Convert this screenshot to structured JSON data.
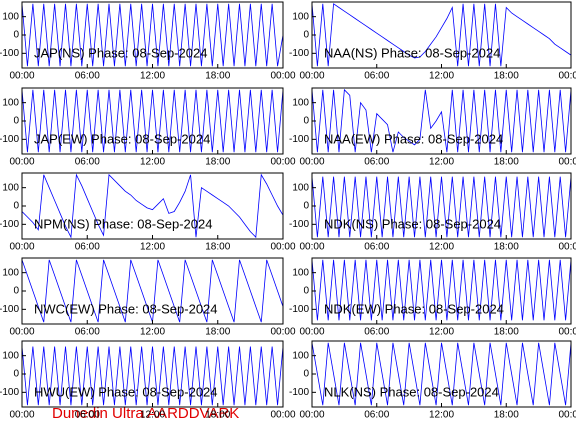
{
  "footer": "Dunedin Ultra AARDDVARK",
  "chart_data": [
    {
      "type": "line",
      "title": "JAP(NS) Phase: 08-Sep-2024",
      "color": "#0000ff",
      "x": [
        0,
        0.5,
        1,
        1.5,
        2,
        2.5,
        3,
        3.5,
        4,
        4.5,
        5,
        5.5,
        6,
        6.5,
        7,
        7.5,
        8,
        8.5,
        9,
        9.5,
        10,
        10.5,
        11,
        11.5,
        12,
        12.5,
        13,
        13.5,
        14,
        14.5,
        15,
        15.5,
        16,
        16.5,
        17,
        17.5,
        18,
        18.5,
        19,
        19.5,
        20,
        20.5,
        21,
        21.5,
        22,
        22.5,
        23,
        23.5,
        24
      ],
      "values": [
        170,
        -170,
        170,
        -170,
        170,
        -170,
        170,
        -170,
        170,
        -170,
        170,
        -170,
        170,
        -170,
        170,
        -170,
        170,
        -170,
        170,
        -170,
        170,
        -170,
        170,
        -170,
        170,
        -170,
        170,
        -170,
        170,
        -170,
        170,
        -170,
        170,
        -170,
        170,
        -170,
        170,
        -170,
        170,
        -170,
        170,
        -170,
        170,
        -170,
        170,
        -170,
        170,
        -170,
        0
      ],
      "xlim": [
        0,
        24
      ],
      "ylim": [
        -180,
        180
      ],
      "yticks": [
        -100,
        0,
        100
      ],
      "xticks": [
        {
          "value": 0,
          "label": "00:00"
        },
        {
          "value": 6,
          "label": "06:00"
        },
        {
          "value": 12,
          "label": "12:00"
        },
        {
          "value": 18,
          "label": "18:00"
        },
        {
          "value": 24,
          "label": "00:00"
        }
      ]
    },
    {
      "type": "line",
      "title": "NAA(NS) Phase: 08-Sep-2024",
      "color": "#0000ff",
      "x": [
        0,
        0.5,
        1,
        1.5,
        2,
        2.5,
        3,
        3.5,
        4,
        4.5,
        5,
        5.5,
        6,
        6.5,
        7,
        7.5,
        8,
        8.5,
        9,
        9.5,
        10,
        10.5,
        11,
        11.5,
        12,
        12.5,
        13,
        13.5,
        14,
        14.5,
        15,
        15.5,
        16,
        16.5,
        17,
        17.5,
        18,
        18.5,
        19,
        19.5,
        20,
        20.5,
        21,
        21.5,
        22,
        22.5,
        23,
        23.5,
        24
      ],
      "values": [
        170,
        -170,
        170,
        -170,
        170,
        150,
        130,
        110,
        90,
        70,
        50,
        30,
        10,
        -10,
        -30,
        -50,
        -70,
        -90,
        -110,
        -125,
        -120,
        -90,
        -50,
        -10,
        40,
        90,
        150,
        -170,
        170,
        -170,
        170,
        -170,
        170,
        -170,
        170,
        -170,
        150,
        120,
        100,
        80,
        60,
        40,
        20,
        0,
        -20,
        -50,
        -70,
        -90,
        -110
      ],
      "xlim": [
        0,
        24
      ],
      "ylim": [
        -180,
        180
      ],
      "yticks": [
        -100,
        0,
        100
      ],
      "xticks": [
        {
          "value": 0,
          "label": "00:00"
        },
        {
          "value": 6,
          "label": "06:00"
        },
        {
          "value": 12,
          "label": "12:00"
        },
        {
          "value": 18,
          "label": "18:00"
        },
        {
          "value": 24,
          "label": "00:00"
        }
      ]
    },
    {
      "type": "line",
      "title": "JAP(EW) Phase: 08-Sep-2024",
      "color": "#0000ff",
      "x": [
        0,
        0.5,
        1,
        1.5,
        2,
        2.5,
        3,
        3.5,
        4,
        4.5,
        5,
        5.5,
        6,
        6.5,
        7,
        7.5,
        8,
        8.5,
        9,
        9.5,
        10,
        10.5,
        11,
        11.5,
        12,
        12.5,
        13,
        13.5,
        14,
        14.5,
        15,
        15.5,
        16,
        16.5,
        17,
        17.5,
        18,
        18.5,
        19,
        19.5,
        20,
        20.5,
        21,
        21.5,
        22,
        22.5,
        23,
        23.5,
        24
      ],
      "values": [
        170,
        -170,
        170,
        -170,
        170,
        -170,
        170,
        -170,
        170,
        -170,
        170,
        -170,
        170,
        -170,
        170,
        -170,
        170,
        -170,
        170,
        -170,
        170,
        -170,
        170,
        -170,
        170,
        -170,
        170,
        -170,
        170,
        -170,
        170,
        -170,
        170,
        -170,
        170,
        -170,
        170,
        -170,
        170,
        -170,
        170,
        -170,
        170,
        -170,
        170,
        -170,
        170,
        -170,
        170
      ],
      "xlim": [
        0,
        24
      ],
      "ylim": [
        -180,
        180
      ],
      "yticks": [
        -100,
        0,
        100
      ],
      "xticks": [
        {
          "value": 0,
          "label": "00:00"
        },
        {
          "value": 6,
          "label": "06:00"
        },
        {
          "value": 12,
          "label": "12:00"
        },
        {
          "value": 18,
          "label": "18:00"
        },
        {
          "value": 24,
          "label": "00:00"
        }
      ]
    },
    {
      "type": "line",
      "title": "NAA(EW) Phase: 08-Sep-2024",
      "color": "#0000ff",
      "x": [
        0,
        0.5,
        1,
        1.5,
        2,
        2.5,
        3,
        3.5,
        4,
        4.5,
        5,
        5.5,
        6,
        6.5,
        7,
        7.5,
        8,
        8.5,
        9,
        9.5,
        10,
        10.5,
        11,
        11.5,
        12,
        12.5,
        13,
        13.5,
        14,
        14.5,
        15,
        15.5,
        16,
        16.5,
        17,
        17.5,
        18,
        18.5,
        19,
        19.5,
        20,
        20.5,
        21,
        21.5,
        22,
        22.5,
        23,
        23.5,
        24
      ],
      "values": [
        170,
        -170,
        170,
        -170,
        170,
        -170,
        170,
        140,
        -170,
        100,
        60,
        -170,
        40,
        10,
        -20,
        -170,
        -60,
        -90,
        -110,
        -130,
        -100,
        170,
        -40,
        0,
        50,
        -170,
        170,
        -170,
        170,
        -170,
        170,
        -170,
        170,
        -170,
        170,
        -170,
        170,
        -170,
        170,
        -170,
        170,
        -170,
        170,
        -170,
        170,
        -170,
        170,
        -170,
        170
      ],
      "xlim": [
        0,
        24
      ],
      "ylim": [
        -180,
        180
      ],
      "yticks": [
        -100,
        0,
        100
      ],
      "xticks": [
        {
          "value": 0,
          "label": "00:00"
        },
        {
          "value": 6,
          "label": "06:00"
        },
        {
          "value": 12,
          "label": "12:00"
        },
        {
          "value": 18,
          "label": "18:00"
        },
        {
          "value": 24,
          "label": "00:00"
        }
      ]
    },
    {
      "type": "line",
      "title": "NPM(NS) Phase: 08-Sep-2024",
      "color": "#0000ff",
      "x": [
        0,
        0.5,
        1,
        1.5,
        2,
        2.5,
        3,
        3.5,
        4,
        4.5,
        5,
        5.5,
        6,
        6.5,
        7,
        7.5,
        8,
        8.5,
        9,
        9.5,
        10,
        10.5,
        11,
        11.5,
        12,
        12.5,
        13,
        13.5,
        14,
        14.5,
        15,
        15.5,
        16,
        16.5,
        17,
        17.5,
        18,
        18.5,
        19,
        19.5,
        20,
        20.5,
        21,
        21.5,
        22,
        22.5,
        23,
        23.5,
        24
      ],
      "values": [
        -30,
        -60,
        -90,
        -130,
        170,
        100,
        30,
        -40,
        -110,
        -170,
        170,
        110,
        40,
        -30,
        -100,
        -160,
        170,
        140,
        110,
        80,
        60,
        30,
        10,
        -10,
        -20,
        10,
        40,
        -40,
        -30,
        20,
        80,
        170,
        -170,
        100,
        80,
        60,
        40,
        20,
        0,
        -30,
        -60,
        -100,
        -140,
        -170,
        170,
        120,
        60,
        0,
        -50
      ],
      "xlim": [
        0,
        24
      ],
      "ylim": [
        -180,
        180
      ],
      "yticks": [
        -100,
        0,
        100
      ],
      "xticks": [
        {
          "value": 0,
          "label": "00:00"
        },
        {
          "value": 6,
          "label": "06:00"
        },
        {
          "value": 12,
          "label": "12:00"
        },
        {
          "value": 18,
          "label": "18:00"
        },
        {
          "value": 24,
          "label": "00:00"
        }
      ]
    },
    {
      "type": "line",
      "title": "NDK(NS) Phase: 08-Sep-2024",
      "color": "#0000ff",
      "x": [
        0,
        0.5,
        1,
        1.5,
        2,
        2.5,
        3,
        3.5,
        4,
        4.5,
        5,
        5.5,
        6,
        6.5,
        7,
        7.5,
        8,
        8.5,
        9,
        9.5,
        10,
        10.5,
        11,
        11.5,
        12,
        12.5,
        13,
        13.5,
        14,
        14.5,
        15,
        15.5,
        16,
        16.5,
        17,
        17.5,
        18,
        18.5,
        19,
        19.5,
        20,
        20.5,
        21,
        21.5,
        22,
        22.5,
        23,
        23.5,
        24
      ],
      "values": [
        160,
        -170,
        160,
        -170,
        160,
        -170,
        160,
        -170,
        160,
        -170,
        160,
        -170,
        160,
        -170,
        160,
        -170,
        160,
        -170,
        160,
        -170,
        160,
        -170,
        160,
        -170,
        160,
        -170,
        160,
        -170,
        160,
        -170,
        160,
        -170,
        160,
        -170,
        160,
        -170,
        160,
        -170,
        160,
        -170,
        160,
        -170,
        160,
        -170,
        160,
        -170,
        160,
        -170,
        160
      ],
      "xlim": [
        0,
        24
      ],
      "ylim": [
        -180,
        180
      ],
      "yticks": [
        -100,
        0,
        100
      ],
      "xticks": [
        {
          "value": 0,
          "label": "00:00"
        },
        {
          "value": 6,
          "label": "06:00"
        },
        {
          "value": 12,
          "label": "12:00"
        },
        {
          "value": 18,
          "label": "18:00"
        },
        {
          "value": 24,
          "label": "00:00"
        }
      ]
    },
    {
      "type": "line",
      "title": "NWC(EW) Phase: 08-Sep-2024",
      "color": "#0000ff",
      "x": [
        0,
        0.5,
        1,
        1.5,
        2,
        2.5,
        3,
        3.5,
        4,
        4.5,
        5,
        5.5,
        6,
        6.5,
        7,
        7.5,
        8,
        8.5,
        9,
        9.5,
        10,
        10.5,
        11,
        11.5,
        12,
        12.5,
        13,
        13.5,
        14,
        14.5,
        15,
        15.5,
        16,
        16.5,
        17,
        17.5,
        18,
        18.5,
        19,
        19.5,
        20,
        20.5,
        21,
        21.5,
        22,
        22.5,
        23,
        23.5,
        24
      ],
      "values": [
        170,
        85,
        0,
        -85,
        -170,
        170,
        85,
        0,
        -85,
        -170,
        170,
        85,
        0,
        -85,
        -170,
        170,
        85,
        0,
        -85,
        -170,
        170,
        85,
        0,
        -85,
        -170,
        170,
        85,
        0,
        -85,
        -170,
        170,
        85,
        0,
        -85,
        -170,
        170,
        85,
        0,
        -85,
        -170,
        170,
        85,
        0,
        -85,
        -170,
        170,
        85,
        0,
        -85
      ],
      "xlim": [
        0,
        24
      ],
      "ylim": [
        -180,
        180
      ],
      "yticks": [
        -100,
        0,
        100
      ],
      "xticks": [
        {
          "value": 0,
          "label": "00:00"
        },
        {
          "value": 6,
          "label": "06:00"
        },
        {
          "value": 12,
          "label": "12:00"
        },
        {
          "value": 18,
          "label": "18:00"
        },
        {
          "value": 24,
          "label": "00:00"
        }
      ]
    },
    {
      "type": "line",
      "title": "NDK(EW) Phase: 08-Sep-2024",
      "color": "#0000ff",
      "x": [
        0,
        0.5,
        1,
        1.5,
        2,
        2.5,
        3,
        3.5,
        4,
        4.5,
        5,
        5.5,
        6,
        6.5,
        7,
        7.5,
        8,
        8.5,
        9,
        9.5,
        10,
        10.5,
        11,
        11.5,
        12,
        12.5,
        13,
        13.5,
        14,
        14.5,
        15,
        15.5,
        16,
        16.5,
        17,
        17.5,
        18,
        18.5,
        19,
        19.5,
        20,
        20.5,
        21,
        21.5,
        22,
        22.5,
        23,
        23.5,
        24
      ],
      "values": [
        170,
        -160,
        170,
        -160,
        170,
        -160,
        170,
        -160,
        170,
        -160,
        170,
        -160,
        170,
        -160,
        170,
        -160,
        170,
        -160,
        170,
        -160,
        170,
        -160,
        170,
        -160,
        170,
        -160,
        170,
        -160,
        170,
        -160,
        170,
        -160,
        170,
        -160,
        170,
        -160,
        170,
        -160,
        170,
        -160,
        170,
        -160,
        170,
        -160,
        170,
        -160,
        170,
        -160,
        170
      ],
      "xlim": [
        0,
        24
      ],
      "ylim": [
        -180,
        180
      ],
      "yticks": [
        -100,
        0,
        100
      ],
      "xticks": [
        {
          "value": 0,
          "label": "00:00"
        },
        {
          "value": 6,
          "label": "06:00"
        },
        {
          "value": 12,
          "label": "12:00"
        },
        {
          "value": 18,
          "label": "18:00"
        },
        {
          "value": 24,
          "label": "00:00"
        }
      ]
    },
    {
      "type": "line",
      "title": "HWU(EW) Phase: 08-Sep-2024",
      "color": "#0000ff",
      "x": [
        0,
        0.5,
        1,
        1.5,
        2,
        2.5,
        3,
        3.5,
        4,
        4.5,
        5,
        5.5,
        6,
        6.5,
        7,
        7.5,
        8,
        8.5,
        9,
        9.5,
        10,
        10.5,
        11,
        11.5,
        12,
        12.5,
        13,
        13.5,
        14,
        14.5,
        15,
        15.5,
        16,
        16.5,
        17,
        17.5,
        18,
        18.5,
        19,
        19.5,
        20,
        20.5,
        21,
        21.5,
        22,
        22.5,
        23,
        23.5,
        24
      ],
      "values": [
        150,
        -170,
        150,
        -170,
        150,
        -170,
        150,
        -170,
        150,
        -170,
        150,
        -170,
        150,
        -170,
        150,
        -170,
        150,
        -170,
        150,
        -170,
        150,
        -170,
        150,
        -170,
        150,
        -170,
        150,
        -170,
        150,
        -170,
        150,
        -170,
        150,
        -170,
        150,
        -170,
        150,
        -170,
        150,
        -170,
        150,
        -170,
        150,
        -170,
        150,
        -170,
        150,
        -170,
        150
      ],
      "xlim": [
        0,
        24
      ],
      "ylim": [
        -180,
        180
      ],
      "yticks": [
        -100,
        0,
        100
      ],
      "xticks": [
        {
          "value": 0,
          "label": "00:00"
        },
        {
          "value": 6,
          "label": "06:00"
        },
        {
          "value": 12,
          "label": "12:00"
        },
        {
          "value": 18,
          "label": "18:00"
        },
        {
          "value": 24,
          "label": "00:00"
        }
      ]
    },
    {
      "type": "line",
      "title": "NLK(NS) Phase: 08-Sep-2024",
      "color": "#0000ff",
      "x": [
        0,
        0.5,
        1,
        1.5,
        2,
        2.5,
        3,
        3.5,
        4,
        4.5,
        5,
        5.5,
        6,
        6.5,
        7,
        7.5,
        8,
        8.5,
        9,
        9.5,
        10,
        10.5,
        11,
        11.5,
        12,
        12.5,
        13,
        13.5,
        14,
        14.5,
        15,
        15.5,
        16,
        16.5,
        17,
        17.5,
        18,
        18.5,
        19,
        19.5,
        20,
        20.5,
        21,
        21.5,
        22,
        22.5,
        23,
        23.5,
        24
      ],
      "values": [
        170,
        0,
        -170,
        170,
        0,
        -170,
        170,
        0,
        -170,
        170,
        0,
        -170,
        170,
        0,
        -170,
        170,
        0,
        -170,
        170,
        0,
        -170,
        170,
        0,
        -170,
        170,
        0,
        -170,
        170,
        0,
        -170,
        170,
        0,
        -170,
        170,
        0,
        -170,
        170,
        0,
        -170,
        170,
        0,
        -170,
        170,
        0,
        -170,
        170,
        0,
        -170,
        170
      ],
      "xlim": [
        0,
        24
      ],
      "ylim": [
        -180,
        180
      ],
      "yticks": [
        -100,
        0,
        100
      ],
      "xticks": [
        {
          "value": 0,
          "label": "00:00"
        },
        {
          "value": 6,
          "label": "06:00"
        },
        {
          "value": 12,
          "label": "12:00"
        },
        {
          "value": 18,
          "label": "18:00"
        },
        {
          "value": 24,
          "label": "00:00"
        }
      ]
    }
  ]
}
